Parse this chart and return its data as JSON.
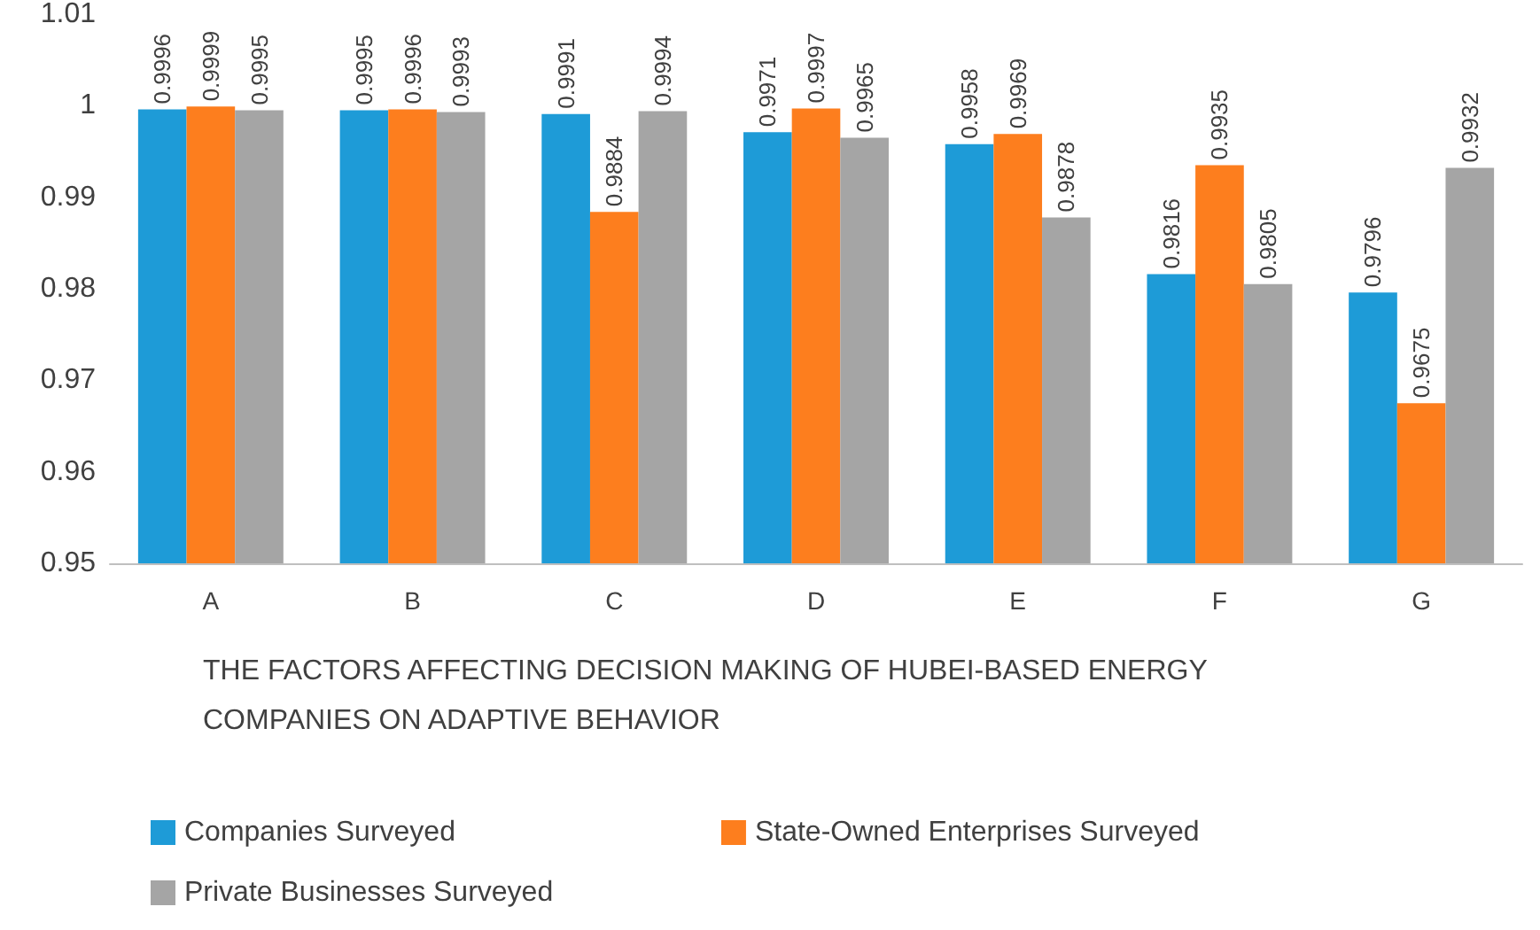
{
  "chart_data": {
    "type": "bar",
    "xlabel": "THE FACTORS AFFECTING DECISION MAKING OF HUBEI-BASED ENERGY COMPANIES ON ADAPTIVE BEHAVIOR",
    "categories": [
      "A",
      "B",
      "C",
      "D",
      "E",
      "F",
      "G"
    ],
    "series": [
      {
        "name": "Companies Surveyed",
        "color": "#1e9bd7",
        "values": [
          0.9996,
          0.9995,
          0.9991,
          0.9971,
          0.9958,
          0.9816,
          0.9796
        ]
      },
      {
        "name": "State-Owned Enterprises Surveyed",
        "color": "#fd7e1e",
        "values": [
          0.9999,
          0.9996,
          0.9884,
          0.9997,
          0.9969,
          0.9935,
          0.9675
        ]
      },
      {
        "name": "Private Businesses Surveyed",
        "color": "#a5a5a5",
        "values": [
          0.9995,
          0.9993,
          0.9994,
          0.9965,
          0.9878,
          0.9805,
          0.9932
        ]
      }
    ],
    "ylim": [
      0.95,
      1.01
    ],
    "yticks": [
      0.95,
      0.96,
      0.97,
      0.98,
      0.99,
      1,
      1.01
    ],
    "grid": false,
    "legend": "bottom",
    "data_labels": true
  }
}
